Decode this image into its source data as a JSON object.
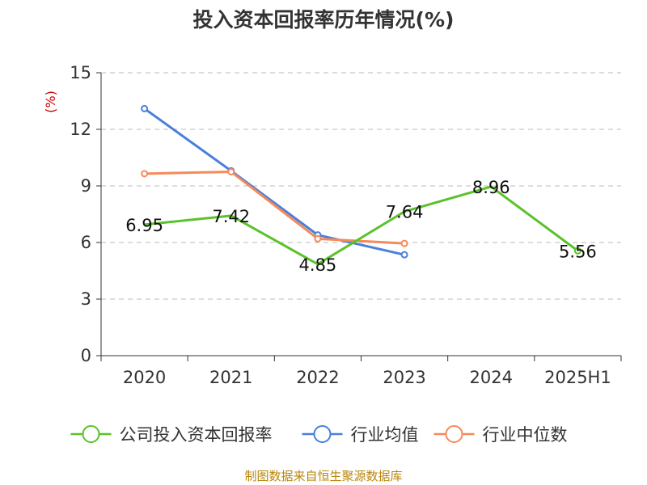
{
  "chart_data": {
    "type": "line",
    "title": "投入资本回报率历年情况(%)",
    "ylabel": "(%)",
    "categories": [
      "2020",
      "2021",
      "2022",
      "2023",
      "2024",
      "2025H1"
    ],
    "ylim": [
      0,
      15
    ],
    "yticks": [
      0,
      3,
      6,
      9,
      12,
      15
    ],
    "grid": true,
    "legend_position": "bottom",
    "series": [
      {
        "name": "公司投入资本回报率",
        "color": "#5bc22b",
        "values": [
          6.95,
          7.42,
          4.85,
          7.64,
          8.96,
          5.56
        ],
        "labeled": true,
        "markers": "last-only"
      },
      {
        "name": "行业均值",
        "color": "#4a7fdb",
        "values": [
          13.1,
          9.8,
          6.4,
          5.35,
          null,
          null
        ],
        "labeled": false,
        "markers": "all"
      },
      {
        "name": "行业中位数",
        "color": "#f58a5a",
        "values": [
          9.65,
          9.75,
          6.2,
          5.95,
          null,
          null
        ],
        "labeled": false,
        "markers": "all"
      }
    ],
    "data_labels": [
      "6.95",
      "7.42",
      "4.85",
      "7.64",
      "8.96",
      "5.56"
    ],
    "source": "制图数据来自恒生聚源数据库"
  }
}
